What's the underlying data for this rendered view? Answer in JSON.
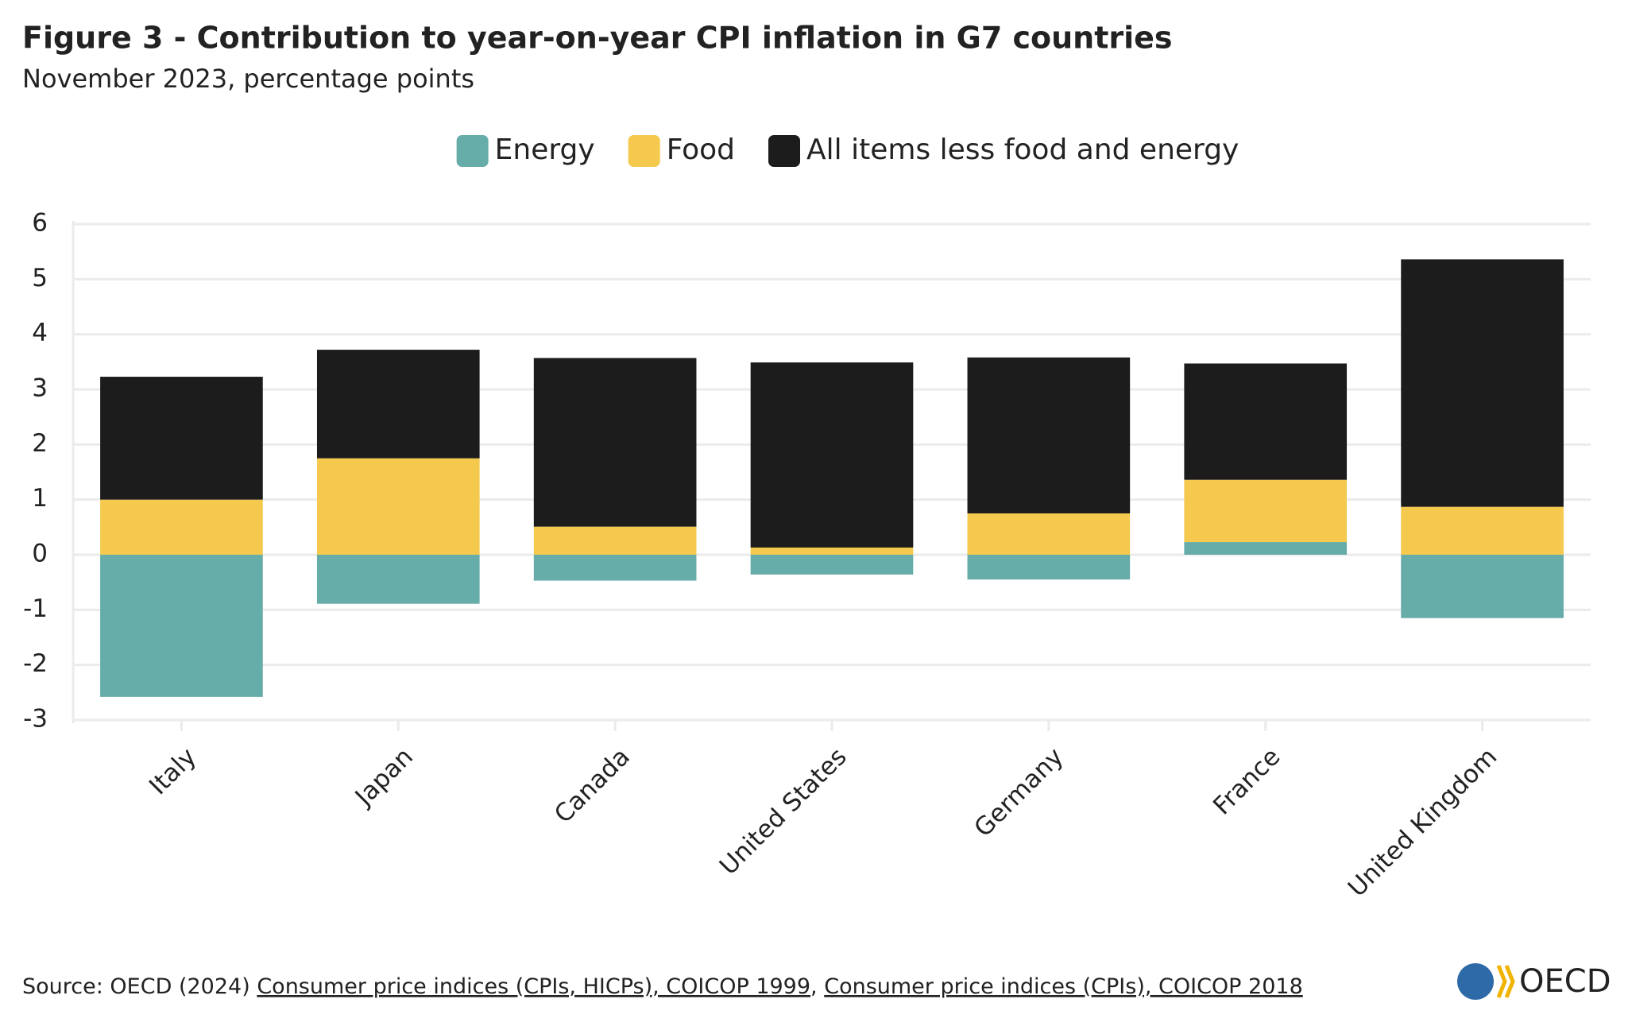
{
  "chart_data": {
    "type": "stacked_bar",
    "title": "Figure 3 - Contribution to year-on-year CPI inflation in G7 countries",
    "subtitle": "November 2023, percentage points",
    "categories": [
      "Italy",
      "Japan",
      "Canada",
      "United States",
      "Germany",
      "France",
      "United Kingdom"
    ],
    "series": [
      {
        "name": "Energy",
        "color": "#66aca9",
        "values": [
          -2.58,
          -0.89,
          -0.47,
          -0.36,
          -0.45,
          0.23,
          -1.15
        ]
      },
      {
        "name": "Food",
        "color": "#f5c94d",
        "values": [
          1.0,
          1.75,
          0.51,
          0.13,
          0.75,
          1.13,
          0.87
        ]
      },
      {
        "name": "All items less food and energy",
        "color": "#1c1c1c",
        "values": [
          2.23,
          1.97,
          3.06,
          3.36,
          2.83,
          2.11,
          4.49
        ]
      }
    ],
    "ylim": [
      -3,
      6
    ],
    "yticks": [
      -3,
      -2,
      -1,
      0,
      1,
      2,
      3,
      4,
      5,
      6
    ],
    "grid": true,
    "legend": "top",
    "source": {
      "prefix": "Source: OECD (2024)",
      "links": [
        "Consumer price indices (CPIs, HICPs), COICOP 1999",
        "Consumer price indices (CPIs), COICOP 2018"
      ],
      "separator": ","
    },
    "logo": "OECD"
  }
}
